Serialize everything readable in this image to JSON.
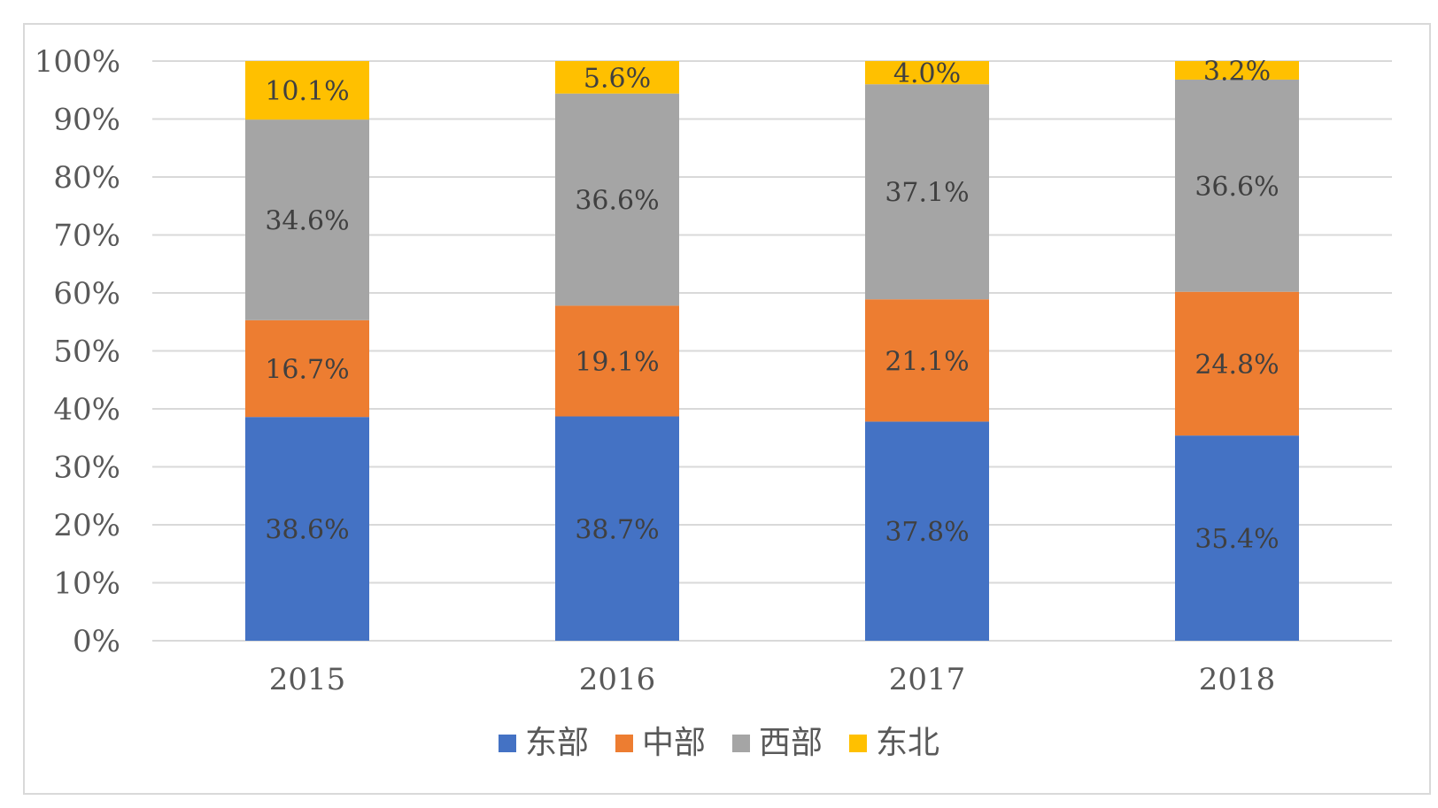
{
  "chart_data": {
    "type": "bar",
    "stacked": true,
    "categories": [
      "2015",
      "2016",
      "2017",
      "2018"
    ],
    "series": [
      {
        "name": "东部",
        "values": [
          38.6,
          38.7,
          37.8,
          35.4
        ],
        "color": "#4472C4",
        "labels": [
          "38.6%",
          "38.7%",
          "37.8%",
          "35.4%"
        ]
      },
      {
        "name": "中部",
        "values": [
          16.7,
          19.1,
          21.1,
          24.8
        ],
        "color": "#ED7D31",
        "labels": [
          "16.7%",
          "19.1%",
          "21.1%",
          "24.8%"
        ]
      },
      {
        "name": "西部",
        "values": [
          34.6,
          36.6,
          37.1,
          36.6
        ],
        "color": "#A5A5A5",
        "labels": [
          "34.6%",
          "36.6%",
          "37.1%",
          "36.6%"
        ]
      },
      {
        "name": "东北",
        "values": [
          10.1,
          5.6,
          4.0,
          3.2
        ],
        "color": "#FFC000",
        "labels": [
          "10.1%",
          "5.6%",
          "4.0%",
          "3.2%"
        ]
      }
    ],
    "ylim": [
      0,
      100
    ],
    "yticks": [
      "0%",
      "10%",
      "20%",
      "30%",
      "40%",
      "50%",
      "60%",
      "70%",
      "80%",
      "90%",
      "100%"
    ],
    "grid": true,
    "legend": "bottom",
    "title": "",
    "xlabel": "",
    "ylabel": ""
  }
}
